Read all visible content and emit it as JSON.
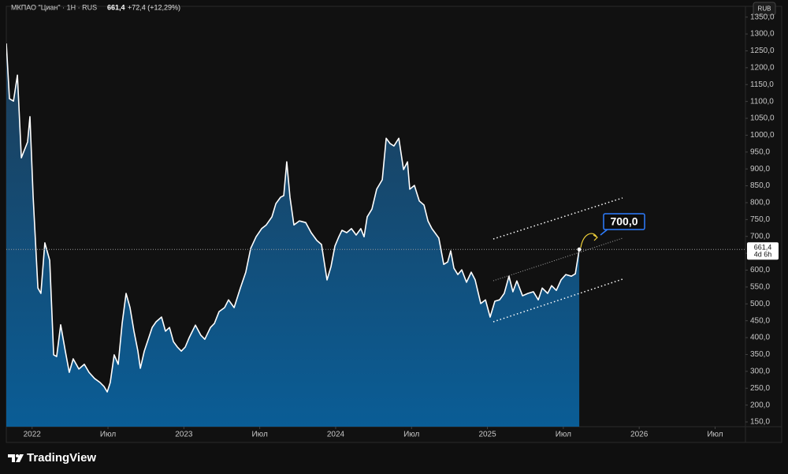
{
  "chart_data": {
    "type": "area",
    "title": "МКПАО \"Циан\" · 1H · RUS",
    "header_price": "661,4",
    "header_change": "+72,4 (+12,29%)",
    "currency": "RUB",
    "last_price_label": "661,4",
    "countdown": "4d 6h",
    "target_label": "700,0",
    "color": "#ffffff",
    "x": [
      2021.83,
      2021.851,
      2021.877,
      2021.903,
      2021.929,
      2021.97,
      2021.986,
      2022.007,
      2022.038,
      2022.058,
      2022.084,
      2022.116,
      2022.142,
      2022.162,
      2022.188,
      2022.219,
      2022.245,
      2022.271,
      2022.308,
      2022.344,
      2022.375,
      2022.411,
      2022.448,
      2022.474,
      2022.495,
      2022.515,
      2022.541,
      2022.567,
      2022.593,
      2022.619,
      2022.645,
      2022.671,
      2022.697,
      2022.713,
      2022.739,
      2022.765,
      2022.791,
      2022.817,
      2022.853,
      2022.879,
      2022.905,
      2022.931,
      2022.957,
      2022.983,
      2023.009,
      2023.035,
      2023.076,
      2023.112,
      2023.138,
      2023.175,
      2023.201,
      2023.232,
      2023.268,
      2023.294,
      2023.331,
      2023.372,
      2023.408,
      2023.44,
      2023.476,
      2023.512,
      2023.543,
      2023.58,
      2023.606,
      2023.637,
      2023.658,
      2023.678,
      2023.699,
      2023.725,
      2023.761,
      2023.803,
      2023.839,
      2023.876,
      2023.907,
      2023.943,
      2023.969,
      2023.995,
      2024.021,
      2024.042,
      2024.073,
      2024.104,
      2024.135,
      2024.166,
      2024.187,
      2024.208,
      2024.239,
      2024.27,
      2024.307,
      2024.333,
      2024.359,
      2024.384,
      2024.416,
      2024.447,
      2024.473,
      2024.488,
      2024.519,
      2024.551,
      2024.582,
      2024.608,
      2024.634,
      2024.654,
      2024.68,
      2024.712,
      2024.738,
      2024.758,
      2024.779,
      2024.805,
      2024.831,
      2024.862,
      2024.893,
      2024.919,
      2024.956,
      2024.987,
      2025.018,
      2025.049,
      2025.08,
      2025.111,
      2025.142,
      2025.168,
      2025.194,
      2025.231,
      2025.267,
      2025.303,
      2025.335,
      2025.361,
      2025.397,
      2025.423,
      2025.454,
      2025.485,
      2025.516,
      2025.553,
      2025.579,
      2025.605
    ],
    "values": [
      1272,
      1108,
      1101,
      1178,
      933,
      980,
      1055,
      816,
      547,
      531,
      681,
      629,
      349,
      344,
      438,
      360,
      297,
      337,
      307,
      321,
      297,
      279,
      267,
      255,
      239,
      267,
      349,
      321,
      442,
      531,
      489,
      419,
      360,
      309,
      360,
      395,
      430,
      447,
      461,
      419,
      430,
      388,
      372,
      360,
      372,
      400,
      437,
      407,
      395,
      430,
      442,
      477,
      489,
      512,
      489,
      547,
      594,
      664,
      699,
      723,
      734,
      758,
      797,
      816,
      821,
      921,
      816,
      734,
      746,
      741,
      711,
      688,
      676,
      571,
      610,
      671,
      699,
      718,
      711,
      723,
      704,
      723,
      699,
      758,
      781,
      840,
      868,
      991,
      975,
      968,
      991,
      898,
      921,
      840,
      851,
      805,
      793,
      746,
      723,
      711,
      695,
      617,
      624,
      657,
      606,
      587,
      601,
      564,
      594,
      571,
      501,
      512,
      461,
      508,
      512,
      531,
      582,
      536,
      568,
      524,
      531,
      536,
      512,
      547,
      531,
      554,
      540,
      571,
      587,
      582,
      589,
      661.4
    ],
    "xlim": [
      2021.83,
      2026.7
    ],
    "xticks": [
      {
        "value": 2022,
        "label": "2022"
      },
      {
        "value": 2022.5,
        "label": "Июл"
      },
      {
        "value": 2023,
        "label": "2023"
      },
      {
        "value": 2023.5,
        "label": "Июл"
      },
      {
        "value": 2024,
        "label": "2024"
      },
      {
        "value": 2024.5,
        "label": "Июл"
      },
      {
        "value": 2025,
        "label": "2025"
      },
      {
        "value": 2025.5,
        "label": "Июл"
      },
      {
        "value": 2026,
        "label": "2026"
      },
      {
        "value": 2026.5,
        "label": "Июл"
      }
    ],
    "ylim": [
      136,
      1382
    ],
    "yticks": [
      {
        "value": 150,
        "label": "150,0"
      },
      {
        "value": 200,
        "label": "200,0"
      },
      {
        "value": 250,
        "label": "250,0"
      },
      {
        "value": 300,
        "label": "300,0"
      },
      {
        "value": 350,
        "label": "350,0"
      },
      {
        "value": 400,
        "label": "400,0"
      },
      {
        "value": 450,
        "label": "450,0"
      },
      {
        "value": 500,
        "label": "500,0"
      },
      {
        "value": 550,
        "label": "550,0"
      },
      {
        "value": 600,
        "label": "600,0"
      },
      {
        "value": 650,
        "label": "650,0"
      },
      {
        "value": 700,
        "label": "700,0"
      },
      {
        "value": 750,
        "label": "750,0"
      },
      {
        "value": 800,
        "label": "800,0"
      },
      {
        "value": 850,
        "label": "850,0"
      },
      {
        "value": 900,
        "label": "900,0"
      },
      {
        "value": 950,
        "label": "950,0"
      },
      {
        "value": 1000,
        "label": "1000,0"
      },
      {
        "value": 1050,
        "label": "1050,0"
      },
      {
        "value": 1100,
        "label": "1100,0"
      },
      {
        "value": 1150,
        "label": "1150,0"
      },
      {
        "value": 1200,
        "label": "1200,0"
      },
      {
        "value": 1250,
        "label": "1250,0"
      },
      {
        "value": 1300,
        "label": "1300,0"
      },
      {
        "value": 1350,
        "label": "1350,0"
      }
    ],
    "grid": false
  },
  "footer": {
    "brand": "TradingView"
  }
}
